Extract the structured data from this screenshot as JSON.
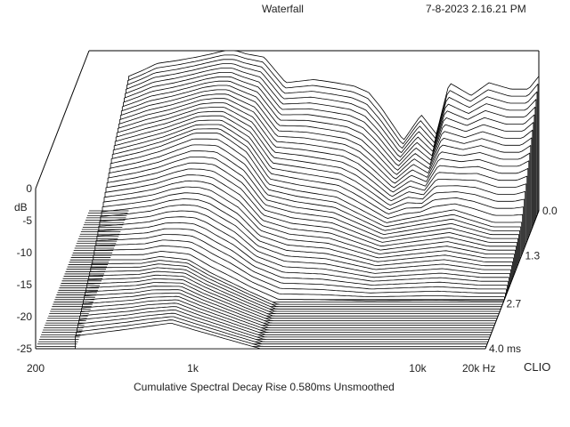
{
  "header": {
    "title": "Waterfall",
    "timestamp": "7-8-2023 2.16.21 PM"
  },
  "footer": {
    "caption": "Cumulative Spectral Decay   Rise 0.580ms   Unsmoothed",
    "brand": "CLIO"
  },
  "chart_data": {
    "type": "area",
    "title": "Waterfall",
    "subtitle": "Cumulative Spectral Decay   Rise 0.580ms   Unsmoothed",
    "ylabel": "dB",
    "y_ticks": [
      "0",
      "-5",
      "-10",
      "-15",
      "-20",
      "-25"
    ],
    "x_ticks": [
      "200",
      "1k",
      "10k",
      "20k Hz"
    ],
    "z_ticks": [
      "0.0",
      "1.3",
      "2.7",
      "4.0 ms"
    ],
    "x_scale": "log",
    "xlim_hz": [
      200,
      20000
    ],
    "ylim_db": [
      -25,
      0
    ],
    "zlim_ms": [
      0,
      4.0
    ],
    "slice_count": 60,
    "series": [
      {
        "time_ms": 0.0,
        "x_hz": [
          300,
          350,
          400,
          500,
          600,
          700,
          800,
          900,
          1000,
          1200,
          1500,
          2000,
          2500,
          3000,
          3500,
          4000,
          5000,
          6000,
          7000,
          8000,
          10000,
          12000,
          15000,
          18000,
          20000
        ],
        "db": [
          -4,
          -3,
          -2,
          -1.5,
          -1,
          -0.5,
          0,
          0,
          -0.5,
          -1,
          -5,
          -4.5,
          -5,
          -5.5,
          -6.5,
          -9,
          -14,
          -10,
          -13,
          -5,
          -7,
          -5,
          -6,
          -6,
          -4
        ]
      },
      {
        "time_ms": 1.3,
        "x_hz": [
          300,
          400,
          500,
          700,
          900,
          1000,
          1200,
          1500,
          2000,
          3000,
          5000,
          7000,
          10000,
          15000,
          20000
        ],
        "db": [
          -10,
          -9,
          -8,
          -6,
          -6,
          -7,
          -9,
          -14,
          -15,
          -16,
          -20,
          -19,
          -18,
          -20,
          -20
        ]
      },
      {
        "time_ms": 2.7,
        "x_hz": [
          300,
          400,
          500,
          600,
          800,
          1000,
          1500,
          2000,
          5000,
          10000,
          20000
        ],
        "db": [
          -18,
          -18,
          -18,
          -17.5,
          -18,
          -20,
          -23,
          -25,
          -25,
          -25,
          -25
        ]
      },
      {
        "time_ms": 4.0,
        "x_hz": [
          300,
          500,
          800,
          1000,
          2000,
          5000,
          10000,
          20000
        ],
        "db": [
          -23,
          -22,
          -21,
          -22,
          -25,
          -25,
          -25,
          -25
        ]
      }
    ]
  }
}
